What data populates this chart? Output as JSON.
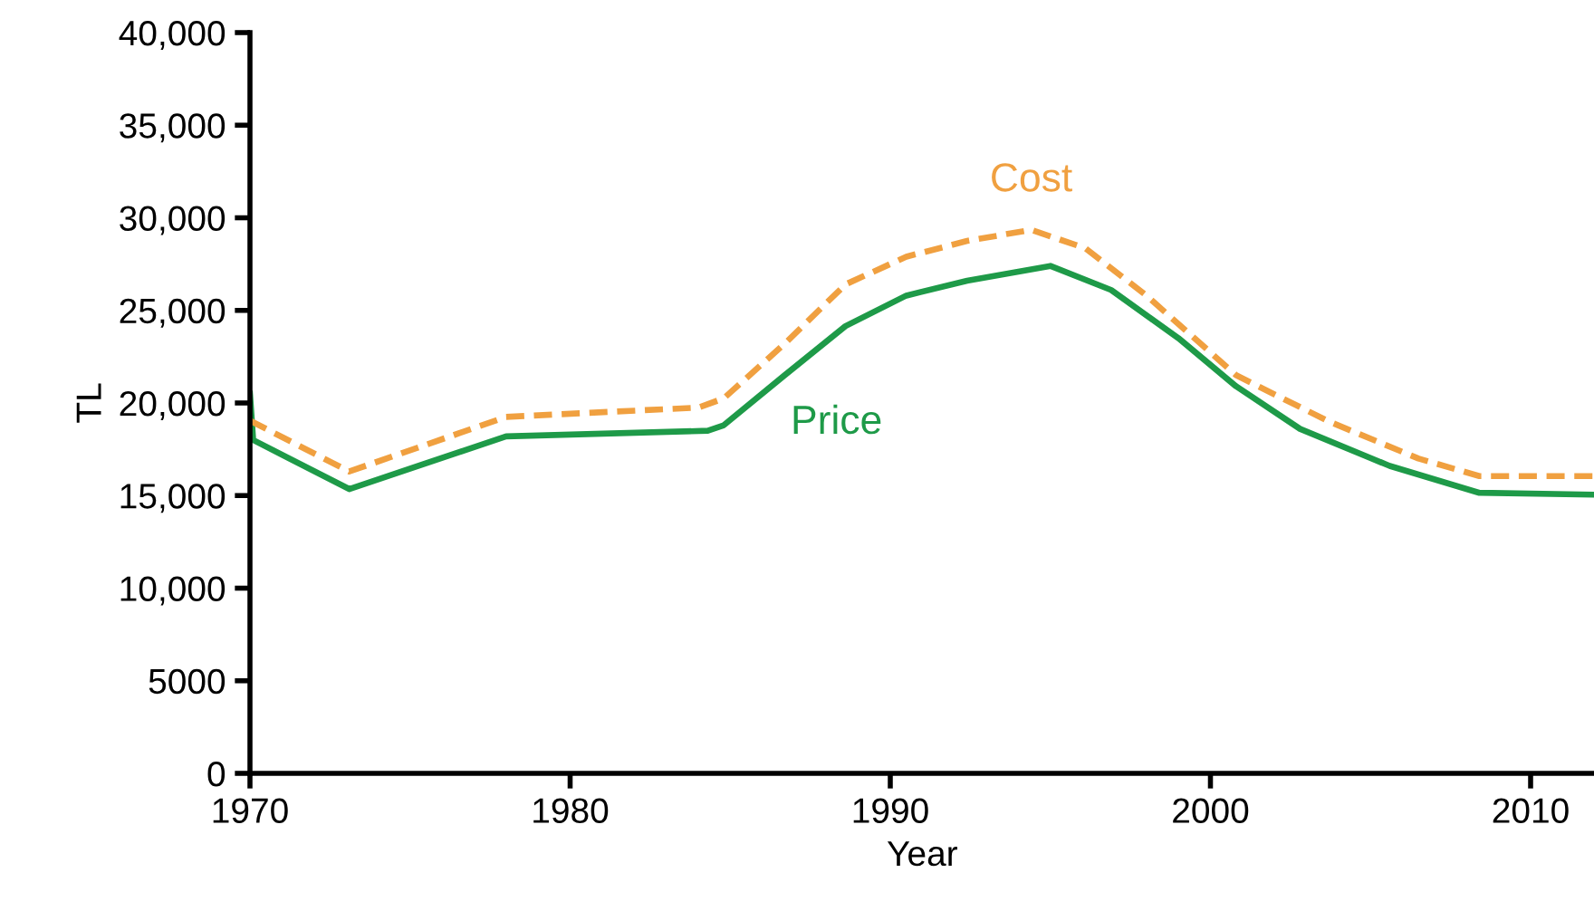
{
  "chart_data": {
    "type": "line",
    "xlabel": "Year",
    "ylabel": "TL",
    "xlim": [
      1970,
      2012
    ],
    "xticks": [
      1970,
      1980,
      1990,
      2000,
      2010
    ],
    "ylim": [
      0,
      40000
    ],
    "yticks": [
      0,
      {
        "value": 5000,
        "label": "5000"
      },
      {
        "value": 10000,
        "label": "10,000"
      },
      {
        "value": 15000,
        "label": "15,000"
      },
      {
        "value": 20000,
        "label": "20,000"
      },
      {
        "value": 25000,
        "label": "25,000"
      },
      {
        "value": 30000,
        "label": "30,000"
      },
      {
        "value": 35000,
        "label": "35,000"
      },
      {
        "value": 40000,
        "label": "40,000"
      }
    ],
    "grid": false,
    "legend": false,
    "series": [
      {
        "name": "Price",
        "color": "#1e9a48",
        "line_style": "solid",
        "x": [
          1970,
          1970.1,
          1973.1,
          1978,
          1984.3,
          1984.8,
          1986.7,
          1988.6,
          1990.5,
          1992.4,
          1995,
          1996.9,
          1999,
          2000.8,
          2002.8,
          2005.6,
          2008.4,
          2012
        ],
        "values": [
          20500,
          18000,
          15350,
          18200,
          18500,
          18800,
          21500,
          24150,
          25800,
          26600,
          27400,
          26100,
          23500,
          20900,
          18600,
          16600,
          15150,
          15050
        ]
      },
      {
        "name": "Cost",
        "color": "#f0a040",
        "line_style": "dashed",
        "x": [
          1970,
          1973.1,
          1978,
          1984,
          1984.8,
          1986.7,
          1988.6,
          1990.5,
          1992.4,
          1994.4,
          1996.1,
          1998,
          2000.8,
          2003.7,
          2006.5,
          2008.4,
          2012
        ],
        "values": [
          19050,
          16300,
          19250,
          19750,
          20250,
          23200,
          26400,
          27900,
          28750,
          29350,
          28350,
          25800,
          21500,
          19000,
          17000,
          16050,
          16050
        ]
      }
    ]
  }
}
